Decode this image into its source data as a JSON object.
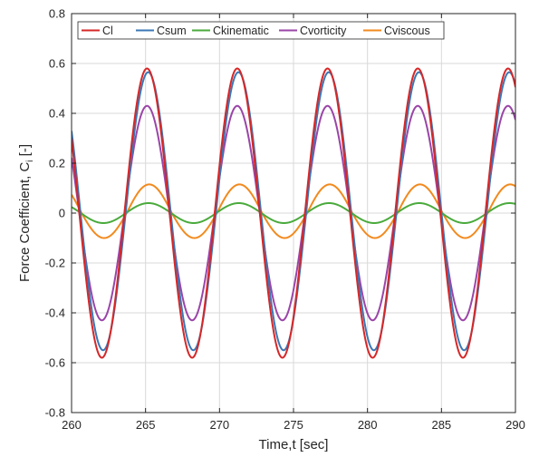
{
  "chart_data": {
    "type": "line",
    "title": "",
    "xlabel": "Time,t [sec]",
    "ylabel_main": "Force Coefficient, C",
    "ylabel_sub": "i",
    "ylabel_tail": " [-]",
    "xlim": [
      260,
      290
    ],
    "ylim": [
      -0.8,
      0.8
    ],
    "xticks": [
      260,
      265,
      270,
      275,
      280,
      285,
      290
    ],
    "xtick_labels": [
      "260",
      "265",
      "270",
      "275",
      "280",
      "285",
      "290"
    ],
    "yticks": [
      -0.8,
      -0.6,
      -0.4,
      -0.2,
      0,
      0.2,
      0.4,
      0.6,
      0.8
    ],
    "ytick_labels": [
      "-0.8",
      "-0.6",
      "-0.4",
      "-0.2",
      "0",
      "0.2",
      "0.4",
      "0.6",
      "0.8"
    ],
    "grid": true,
    "legend_position": "top, horizontal",
    "period": 6.1,
    "peak_times": [
      265.1,
      271.2,
      277.3,
      283.4,
      289.5
    ],
    "series": [
      {
        "name": "Cl",
        "color": "#d62728",
        "amplitude": 0.58,
        "phase_shift": 0.0,
        "peaks": [
          0.58,
          0.58,
          0.58,
          0.58,
          0.58
        ],
        "troughs": [
          -0.58,
          -0.58,
          -0.58,
          -0.58,
          -0.58
        ]
      },
      {
        "name": "Csum",
        "color": "#3a78b5",
        "amplitude": 0.565,
        "phase_shift": 0.08,
        "peaks": [
          0.565,
          0.565,
          0.565,
          0.565,
          0.565
        ],
        "troughs": [
          -0.55,
          -0.55,
          -0.55,
          -0.55,
          -0.55
        ]
      },
      {
        "name": "Ckinematic",
        "color": "#4aaa3c",
        "amplitude": 0.04,
        "phase_shift": 0.1,
        "peaks": [
          0.04,
          0.04,
          0.04,
          0.04,
          0.04
        ],
        "troughs": [
          -0.04,
          -0.04,
          -0.04,
          -0.04,
          -0.04
        ]
      },
      {
        "name": "Cvorticity",
        "color": "#9a45a8",
        "amplitude": 0.43,
        "phase_shift": 0.0,
        "peaks": [
          0.43,
          0.43,
          0.43,
          0.43,
          0.43
        ],
        "troughs": [
          -0.43,
          -0.43,
          -0.43,
          -0.43,
          -0.43
        ]
      },
      {
        "name": "Cviscous",
        "color": "#f28a1e",
        "amplitude": 0.115,
        "phase_shift": 0.15,
        "peaks": [
          0.115,
          0.115,
          0.115,
          0.115,
          0.115
        ],
        "troughs": [
          -0.1,
          -0.1,
          -0.1,
          -0.1,
          -0.1
        ]
      }
    ]
  }
}
